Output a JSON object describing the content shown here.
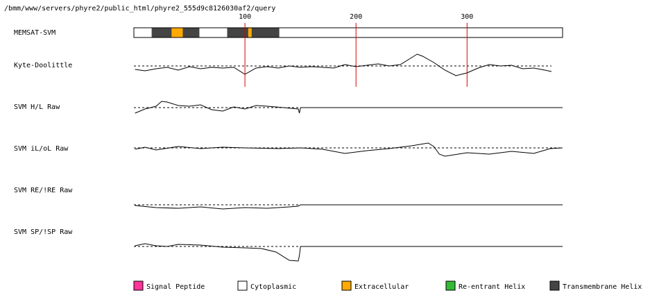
{
  "header": {
    "path": "/bmm/www/servers/phyre2/public_html/phyre2_555d9c8126030af2/query"
  },
  "chart_data": {
    "type": "line",
    "title": "",
    "x_ticks": [
      100,
      200,
      300
    ],
    "x_range": [
      0,
      386
    ],
    "tracks": [
      {
        "name": "MEMSAT-SVM",
        "kind": "segments",
        "segments": [
          {
            "start": 1,
            "end": 16,
            "type": "cytoplasmic"
          },
          {
            "start": 17,
            "end": 34,
            "type": "transmembrane"
          },
          {
            "start": 35,
            "end": 44,
            "type": "extracellular"
          },
          {
            "start": 45,
            "end": 59,
            "type": "transmembrane"
          },
          {
            "start": 60,
            "end": 84,
            "type": "cytoplasmic"
          },
          {
            "start": 85,
            "end": 103,
            "type": "transmembrane"
          },
          {
            "start": 104,
            "end": 106,
            "type": "extracellular"
          },
          {
            "start": 107,
            "end": 131,
            "type": "transmembrane"
          },
          {
            "start": 132,
            "end": 386,
            "type": "cytoplasmic"
          }
        ]
      },
      {
        "name": "Kyte-Doolittle",
        "kind": "trace",
        "baseline": 0,
        "end": 376,
        "points": [
          [
            1,
            0.5
          ],
          [
            10,
            0.7
          ],
          [
            20,
            0.4
          ],
          [
            30,
            0.2
          ],
          [
            40,
            0.6
          ],
          [
            50,
            0.1
          ],
          [
            60,
            0.4
          ],
          [
            70,
            0.2
          ],
          [
            80,
            0.3
          ],
          [
            90,
            0.2
          ],
          [
            100,
            1.2
          ],
          [
            110,
            0.3
          ],
          [
            120,
            0.1
          ],
          [
            130,
            0.3
          ],
          [
            140,
            0.0
          ],
          [
            150,
            0.2
          ],
          [
            160,
            0.1
          ],
          [
            170,
            0.2
          ],
          [
            180,
            0.3
          ],
          [
            190,
            -0.2
          ],
          [
            200,
            0.1
          ],
          [
            210,
            -0.1
          ],
          [
            220,
            -0.3
          ],
          [
            230,
            0.0
          ],
          [
            240,
            -0.2
          ],
          [
            250,
            -1.2
          ],
          [
            255,
            -1.7
          ],
          [
            260,
            -1.4
          ],
          [
            270,
            -0.5
          ],
          [
            280,
            0.6
          ],
          [
            290,
            1.4
          ],
          [
            300,
            1.0
          ],
          [
            310,
            0.3
          ],
          [
            320,
            -0.2
          ],
          [
            330,
            0.0
          ],
          [
            340,
            -0.1
          ],
          [
            350,
            0.4
          ],
          [
            360,
            0.3
          ],
          [
            370,
            0.6
          ],
          [
            376,
            0.8
          ]
        ]
      },
      {
        "name": "SVM H/L Raw",
        "kind": "trace",
        "baseline": 0,
        "end": 386,
        "points": [
          [
            1,
            0.8
          ],
          [
            10,
            0.2
          ],
          [
            20,
            -0.2
          ],
          [
            25,
            -0.9
          ],
          [
            30,
            -0.8
          ],
          [
            40,
            -0.3
          ],
          [
            50,
            -0.2
          ],
          [
            60,
            -0.4
          ],
          [
            70,
            0.3
          ],
          [
            80,
            0.5
          ],
          [
            90,
            -0.1
          ],
          [
            100,
            0.2
          ],
          [
            110,
            -0.3
          ],
          [
            120,
            -0.2
          ],
          [
            135,
            0.0
          ],
          [
            148,
            0.2
          ],
          [
            149,
            0.8
          ],
          [
            150,
            0.0
          ],
          [
            386,
            0.0
          ]
        ]
      },
      {
        "name": "SVM iL/oL Raw",
        "kind": "trace",
        "baseline": 0,
        "end": 386,
        "points": [
          [
            1,
            0.2
          ],
          [
            10,
            -0.1
          ],
          [
            20,
            0.3
          ],
          [
            40,
            -0.2
          ],
          [
            60,
            0.1
          ],
          [
            80,
            -0.1
          ],
          [
            100,
            0.0
          ],
          [
            130,
            0.1
          ],
          [
            150,
            0.0
          ],
          [
            170,
            0.2
          ],
          [
            190,
            0.8
          ],
          [
            210,
            0.4
          ],
          [
            230,
            0.1
          ],
          [
            250,
            -0.3
          ],
          [
            265,
            -0.7
          ],
          [
            270,
            -0.2
          ],
          [
            275,
            0.9
          ],
          [
            280,
            1.2
          ],
          [
            300,
            0.7
          ],
          [
            320,
            0.9
          ],
          [
            340,
            0.5
          ],
          [
            360,
            0.8
          ],
          [
            375,
            0.1
          ],
          [
            386,
            0.0
          ]
        ]
      },
      {
        "name": "SVM RE/!RE Raw",
        "kind": "trace",
        "baseline": 0,
        "end": 386,
        "points": [
          [
            1,
            0.1
          ],
          [
            20,
            0.4
          ],
          [
            40,
            0.5
          ],
          [
            60,
            0.3
          ],
          [
            80,
            0.6
          ],
          [
            100,
            0.4
          ],
          [
            120,
            0.5
          ],
          [
            140,
            0.3
          ],
          [
            148,
            0.2
          ],
          [
            150,
            0.0
          ],
          [
            386,
            0.0
          ]
        ]
      },
      {
        "name": "SVM SP/!SP Raw",
        "kind": "trace",
        "baseline": 0,
        "end": 386,
        "points": [
          [
            1,
            -0.1
          ],
          [
            10,
            -0.4
          ],
          [
            20,
            -0.1
          ],
          [
            30,
            0.0
          ],
          [
            40,
            -0.3
          ],
          [
            60,
            -0.2
          ],
          [
            80,
            0.1
          ],
          [
            100,
            0.2
          ],
          [
            115,
            0.3
          ],
          [
            128,
            0.8
          ],
          [
            140,
            2.0
          ],
          [
            148,
            2.1
          ],
          [
            149,
            1.3
          ],
          [
            150,
            0.0
          ],
          [
            386,
            0.0
          ]
        ]
      }
    ],
    "legend": [
      {
        "label": "Signal Peptide",
        "color": "#ff3399"
      },
      {
        "label": "Cytoplasmic",
        "color": "#ffffff"
      },
      {
        "label": "Extracellular",
        "color": "#ffaa00"
      },
      {
        "label": "Re-entrant Helix",
        "color": "#33bb33"
      },
      {
        "label": "Transmembrane Helix",
        "color": "#444444"
      }
    ],
    "colors": {
      "transmembrane": "#444444",
      "extracellular": "#ffaa00",
      "cytoplasmic": "#ffffff",
      "marker_line": "#dd0000"
    }
  }
}
